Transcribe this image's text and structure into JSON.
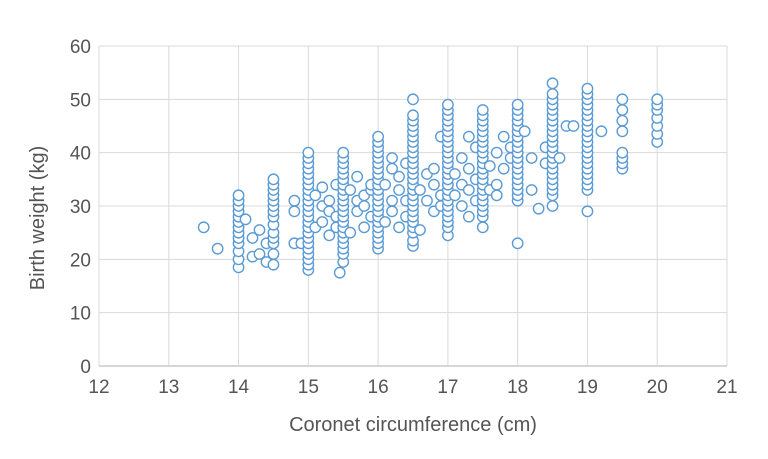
{
  "chart_data": {
    "type": "scatter",
    "title": "",
    "xlabel": "Coronet circumference (cm)",
    "ylabel": "Birth weight (kg)",
    "xlim": [
      12,
      21
    ],
    "ylim": [
      0,
      60
    ],
    "xticks": [
      "12",
      "13",
      "14",
      "15",
      "16",
      "17",
      "18",
      "19",
      "20",
      "21"
    ],
    "yticks": [
      "0",
      "10",
      "20",
      "30",
      "40",
      "50",
      "60"
    ],
    "grid": true,
    "legend": "none",
    "marker": "hollow circle",
    "series": [
      {
        "color": "#5b9bd5",
        "points": [
          [
            13.5,
            26
          ],
          [
            13.7,
            22
          ],
          [
            14.0,
            18.5
          ],
          [
            14.0,
            20
          ],
          [
            14.0,
            21.5
          ],
          [
            14.0,
            23
          ],
          [
            14.0,
            24
          ],
          [
            14.0,
            25
          ],
          [
            14.0,
            26
          ],
          [
            14.0,
            27
          ],
          [
            14.0,
            28
          ],
          [
            14.0,
            29
          ],
          [
            14.0,
            30
          ],
          [
            14.0,
            31
          ],
          [
            14.0,
            32
          ],
          [
            14.1,
            27.5
          ],
          [
            14.2,
            20.5
          ],
          [
            14.2,
            24
          ],
          [
            14.3,
            21
          ],
          [
            14.3,
            25.5
          ],
          [
            14.4,
            19.5
          ],
          [
            14.4,
            23
          ],
          [
            14.5,
            19
          ],
          [
            14.5,
            21
          ],
          [
            14.5,
            23
          ],
          [
            14.5,
            24
          ],
          [
            14.5,
            25
          ],
          [
            14.5,
            26.5
          ],
          [
            14.5,
            28
          ],
          [
            14.5,
            29
          ],
          [
            14.5,
            30
          ],
          [
            14.5,
            31
          ],
          [
            14.5,
            32
          ],
          [
            14.5,
            33
          ],
          [
            14.5,
            34
          ],
          [
            14.5,
            35
          ],
          [
            14.8,
            23
          ],
          [
            14.8,
            29
          ],
          [
            14.8,
            31
          ],
          [
            14.9,
            23
          ],
          [
            15.0,
            18
          ],
          [
            15.0,
            19
          ],
          [
            15.0,
            20
          ],
          [
            15.0,
            21
          ],
          [
            15.0,
            22
          ],
          [
            15.0,
            23
          ],
          [
            15.0,
            24
          ],
          [
            15.0,
            25
          ],
          [
            15.0,
            26
          ],
          [
            15.0,
            27
          ],
          [
            15.0,
            28
          ],
          [
            15.0,
            29
          ],
          [
            15.0,
            30
          ],
          [
            15.0,
            31
          ],
          [
            15.0,
            32
          ],
          [
            15.0,
            33
          ],
          [
            15.0,
            34
          ],
          [
            15.0,
            35
          ],
          [
            15.0,
            36
          ],
          [
            15.0,
            37
          ],
          [
            15.0,
            38
          ],
          [
            15.0,
            39
          ],
          [
            15.0,
            40
          ],
          [
            15.1,
            26
          ],
          [
            15.1,
            32
          ],
          [
            15.2,
            27
          ],
          [
            15.2,
            30
          ],
          [
            15.2,
            33.5
          ],
          [
            15.3,
            24.5
          ],
          [
            15.3,
            29
          ],
          [
            15.3,
            31
          ],
          [
            15.4,
            26
          ],
          [
            15.4,
            28
          ],
          [
            15.4,
            34
          ],
          [
            15.45,
            17.5
          ],
          [
            15.5,
            19.5
          ],
          [
            15.5,
            21
          ],
          [
            15.5,
            22
          ],
          [
            15.5,
            23
          ],
          [
            15.5,
            24
          ],
          [
            15.5,
            25
          ],
          [
            15.5,
            26
          ],
          [
            15.5,
            27
          ],
          [
            15.5,
            28
          ],
          [
            15.5,
            29
          ],
          [
            15.5,
            30
          ],
          [
            15.5,
            31
          ],
          [
            15.5,
            32
          ],
          [
            15.5,
            33
          ],
          [
            15.5,
            34
          ],
          [
            15.5,
            35
          ],
          [
            15.5,
            36
          ],
          [
            15.5,
            37
          ],
          [
            15.5,
            38
          ],
          [
            15.5,
            39
          ],
          [
            15.5,
            40
          ],
          [
            15.6,
            25
          ],
          [
            15.6,
            33
          ],
          [
            15.7,
            29
          ],
          [
            15.7,
            31
          ],
          [
            15.7,
            35.5
          ],
          [
            15.8,
            26
          ],
          [
            15.8,
            30
          ],
          [
            15.8,
            32
          ],
          [
            15.9,
            28
          ],
          [
            15.9,
            33
          ],
          [
            15.9,
            34
          ],
          [
            16.0,
            22
          ],
          [
            16.0,
            23
          ],
          [
            16.0,
            24
          ],
          [
            16.0,
            25
          ],
          [
            16.0,
            26
          ],
          [
            16.0,
            27
          ],
          [
            16.0,
            28
          ],
          [
            16.0,
            29
          ],
          [
            16.0,
            30
          ],
          [
            16.0,
            31
          ],
          [
            16.0,
            32
          ],
          [
            16.0,
            33
          ],
          [
            16.0,
            34
          ],
          [
            16.0,
            35
          ],
          [
            16.0,
            36
          ],
          [
            16.0,
            37
          ],
          [
            16.0,
            38
          ],
          [
            16.0,
            39
          ],
          [
            16.0,
            40
          ],
          [
            16.0,
            41
          ],
          [
            16.0,
            42
          ],
          [
            16.0,
            43
          ],
          [
            16.1,
            27
          ],
          [
            16.1,
            34
          ],
          [
            16.2,
            29
          ],
          [
            16.2,
            31
          ],
          [
            16.2,
            37
          ],
          [
            16.2,
            39
          ],
          [
            16.3,
            26
          ],
          [
            16.3,
            33
          ],
          [
            16.3,
            35.5
          ],
          [
            16.4,
            28
          ],
          [
            16.4,
            31
          ],
          [
            16.4,
            38
          ],
          [
            16.5,
            22.5
          ],
          [
            16.5,
            23.5
          ],
          [
            16.5,
            25
          ],
          [
            16.5,
            26
          ],
          [
            16.5,
            27
          ],
          [
            16.5,
            28
          ],
          [
            16.5,
            29
          ],
          [
            16.5,
            30
          ],
          [
            16.5,
            31
          ],
          [
            16.5,
            32
          ],
          [
            16.5,
            33
          ],
          [
            16.5,
            34
          ],
          [
            16.5,
            35
          ],
          [
            16.5,
            36
          ],
          [
            16.5,
            37
          ],
          [
            16.5,
            38
          ],
          [
            16.5,
            39
          ],
          [
            16.5,
            40
          ],
          [
            16.5,
            41
          ],
          [
            16.5,
            42
          ],
          [
            16.5,
            43
          ],
          [
            16.5,
            44
          ],
          [
            16.5,
            45
          ],
          [
            16.5,
            46
          ],
          [
            16.5,
            47
          ],
          [
            16.5,
            50
          ],
          [
            16.6,
            25.5
          ],
          [
            16.6,
            33
          ],
          [
            16.7,
            31
          ],
          [
            16.7,
            36
          ],
          [
            16.8,
            29
          ],
          [
            16.8,
            34
          ],
          [
            16.8,
            37
          ],
          [
            16.9,
            30
          ],
          [
            16.9,
            32
          ],
          [
            16.9,
            43
          ],
          [
            17.0,
            24.5
          ],
          [
            17.0,
            26
          ],
          [
            17.0,
            27
          ],
          [
            17.0,
            28
          ],
          [
            17.0,
            29
          ],
          [
            17.0,
            30
          ],
          [
            17.0,
            31
          ],
          [
            17.0,
            32
          ],
          [
            17.0,
            33
          ],
          [
            17.0,
            34
          ],
          [
            17.0,
            35
          ],
          [
            17.0,
            36
          ],
          [
            17.0,
            37
          ],
          [
            17.0,
            38
          ],
          [
            17.0,
            39
          ],
          [
            17.0,
            40
          ],
          [
            17.0,
            41
          ],
          [
            17.0,
            42
          ],
          [
            17.0,
            43
          ],
          [
            17.0,
            44
          ],
          [
            17.0,
            45
          ],
          [
            17.0,
            46
          ],
          [
            17.0,
            47
          ],
          [
            17.0,
            48
          ],
          [
            17.0,
            49
          ],
          [
            17.1,
            32
          ],
          [
            17.1,
            36
          ],
          [
            17.2,
            30
          ],
          [
            17.2,
            34
          ],
          [
            17.2,
            39
          ],
          [
            17.3,
            28
          ],
          [
            17.3,
            33
          ],
          [
            17.3,
            37
          ],
          [
            17.3,
            43
          ],
          [
            17.4,
            31
          ],
          [
            17.4,
            35
          ],
          [
            17.4,
            41
          ],
          [
            17.5,
            26
          ],
          [
            17.5,
            28
          ],
          [
            17.5,
            29
          ],
          [
            17.5,
            30
          ],
          [
            17.5,
            31
          ],
          [
            17.5,
            32
          ],
          [
            17.5,
            33
          ],
          [
            17.5,
            34
          ],
          [
            17.5,
            35
          ],
          [
            17.5,
            36
          ],
          [
            17.5,
            37
          ],
          [
            17.5,
            38
          ],
          [
            17.5,
            39
          ],
          [
            17.5,
            40
          ],
          [
            17.5,
            41
          ],
          [
            17.5,
            42
          ],
          [
            17.5,
            43
          ],
          [
            17.5,
            44
          ],
          [
            17.5,
            45
          ],
          [
            17.5,
            46
          ],
          [
            17.5,
            47
          ],
          [
            17.5,
            48
          ],
          [
            17.6,
            33
          ],
          [
            17.6,
            37.5
          ],
          [
            17.7,
            32
          ],
          [
            17.7,
            34
          ],
          [
            17.7,
            40
          ],
          [
            17.8,
            37
          ],
          [
            17.8,
            43
          ],
          [
            17.9,
            39
          ],
          [
            17.9,
            41
          ],
          [
            18.0,
            23
          ],
          [
            18.0,
            31
          ],
          [
            18.0,
            32
          ],
          [
            18.0,
            33
          ],
          [
            18.0,
            34
          ],
          [
            18.0,
            35
          ],
          [
            18.0,
            36
          ],
          [
            18.0,
            37
          ],
          [
            18.0,
            38
          ],
          [
            18.0,
            39
          ],
          [
            18.0,
            40
          ],
          [
            18.0,
            41
          ],
          [
            18.0,
            42
          ],
          [
            18.0,
            43
          ],
          [
            18.0,
            44
          ],
          [
            18.0,
            45
          ],
          [
            18.0,
            46
          ],
          [
            18.0,
            47
          ],
          [
            18.0,
            48
          ],
          [
            18.0,
            49
          ],
          [
            18.1,
            44
          ],
          [
            18.2,
            33
          ],
          [
            18.2,
            39
          ],
          [
            18.3,
            29.5
          ],
          [
            18.4,
            41
          ],
          [
            18.4,
            38
          ],
          [
            18.5,
            30
          ],
          [
            18.5,
            32
          ],
          [
            18.5,
            33
          ],
          [
            18.5,
            34
          ],
          [
            18.5,
            35
          ],
          [
            18.5,
            36
          ],
          [
            18.5,
            37
          ],
          [
            18.5,
            38
          ],
          [
            18.5,
            39
          ],
          [
            18.5,
            40
          ],
          [
            18.5,
            41
          ],
          [
            18.5,
            42
          ],
          [
            18.5,
            43
          ],
          [
            18.5,
            44
          ],
          [
            18.5,
            45
          ],
          [
            18.5,
            46
          ],
          [
            18.5,
            47
          ],
          [
            18.5,
            48
          ],
          [
            18.5,
            49
          ],
          [
            18.5,
            50
          ],
          [
            18.5,
            51
          ],
          [
            18.5,
            53
          ],
          [
            18.6,
            39
          ],
          [
            18.7,
            45
          ],
          [
            18.8,
            45
          ],
          [
            19.0,
            29
          ],
          [
            19.0,
            33
          ],
          [
            19.0,
            34
          ],
          [
            19.0,
            35
          ],
          [
            19.0,
            36
          ],
          [
            19.0,
            37
          ],
          [
            19.0,
            38
          ],
          [
            19.0,
            39
          ],
          [
            19.0,
            40
          ],
          [
            19.0,
            41
          ],
          [
            19.0,
            42
          ],
          [
            19.0,
            43
          ],
          [
            19.0,
            44
          ],
          [
            19.0,
            45
          ],
          [
            19.0,
            46
          ],
          [
            19.0,
            47
          ],
          [
            19.0,
            48
          ],
          [
            19.0,
            49
          ],
          [
            19.0,
            50
          ],
          [
            19.0,
            51
          ],
          [
            19.0,
            52
          ],
          [
            19.2,
            44
          ],
          [
            19.5,
            37
          ],
          [
            19.5,
            38
          ],
          [
            19.5,
            39
          ],
          [
            19.5,
            40
          ],
          [
            19.5,
            44
          ],
          [
            19.5,
            46
          ],
          [
            19.5,
            48
          ],
          [
            19.5,
            50
          ],
          [
            20.0,
            42
          ],
          [
            20.0,
            43.5
          ],
          [
            20.0,
            45
          ],
          [
            20.0,
            46.5
          ],
          [
            20.0,
            48
          ],
          [
            20.0,
            49
          ],
          [
            20.0,
            50
          ]
        ]
      }
    ]
  }
}
